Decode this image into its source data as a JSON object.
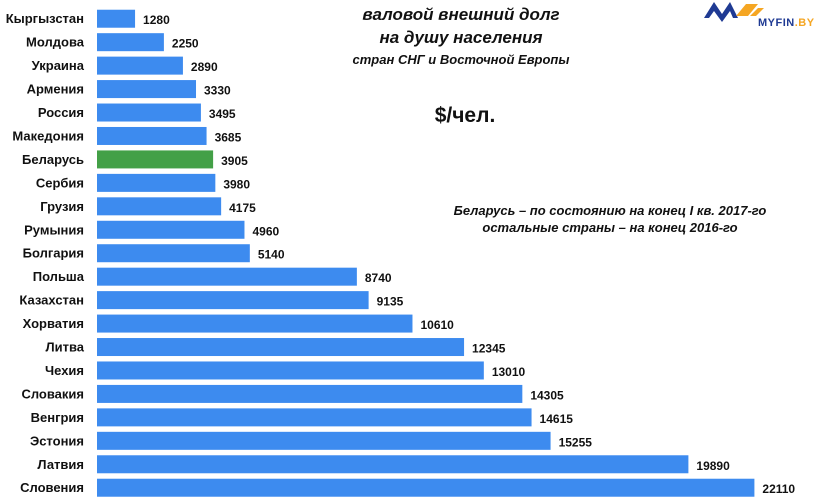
{
  "header": {
    "title_line1": "валовой внешний долг",
    "title_line2": "на душу населения",
    "subtitle": "стран СНГ и Восточной Европы",
    "unit": "$/чел.",
    "note_line1": "Беларусь – по состоянию на конец I кв. 2017-го",
    "note_line2": "остальные страны – на конец 2016-го"
  },
  "logo": {
    "text_main": "MYFIN",
    "text_suffix": ".BY",
    "color_primary": "#1f3a93",
    "color_accent": "#f5a623"
  },
  "colors": {
    "bar": "#3d8bef",
    "highlight": "#43a047"
  },
  "chart_data": {
    "type": "bar",
    "orientation": "horizontal",
    "categories": [
      "Кыргызстан",
      "Молдова",
      "Украина",
      "Армения",
      "Россия",
      "Македония",
      "Беларусь",
      "Сербия",
      "Грузия",
      "Румыния",
      "Болгария",
      "Польша",
      "Казахстан",
      "Хорватия",
      "Литва",
      "Чехия",
      "Словакия",
      "Венгрия",
      "Эстония",
      "Латвия",
      "Словения"
    ],
    "values": [
      1280,
      2250,
      2890,
      3330,
      3495,
      3685,
      3905,
      3980,
      4175,
      4960,
      5140,
      8740,
      9135,
      10610,
      12345,
      13010,
      14305,
      14615,
      15255,
      19890,
      22110
    ],
    "value_labels": [
      "1280",
      "2250",
      "2890",
      "3330",
      "3495",
      "3685",
      "3905",
      "3980",
      "4175",
      "4960",
      "5140",
      "8740",
      "9135",
      "10610",
      "12345",
      "13010",
      "14305",
      "14615",
      "15255",
      "19890",
      "22110"
    ],
    "highlight_category": "Беларусь",
    "xlim": [
      0,
      22500
    ],
    "grid": false,
    "legend": "none"
  }
}
